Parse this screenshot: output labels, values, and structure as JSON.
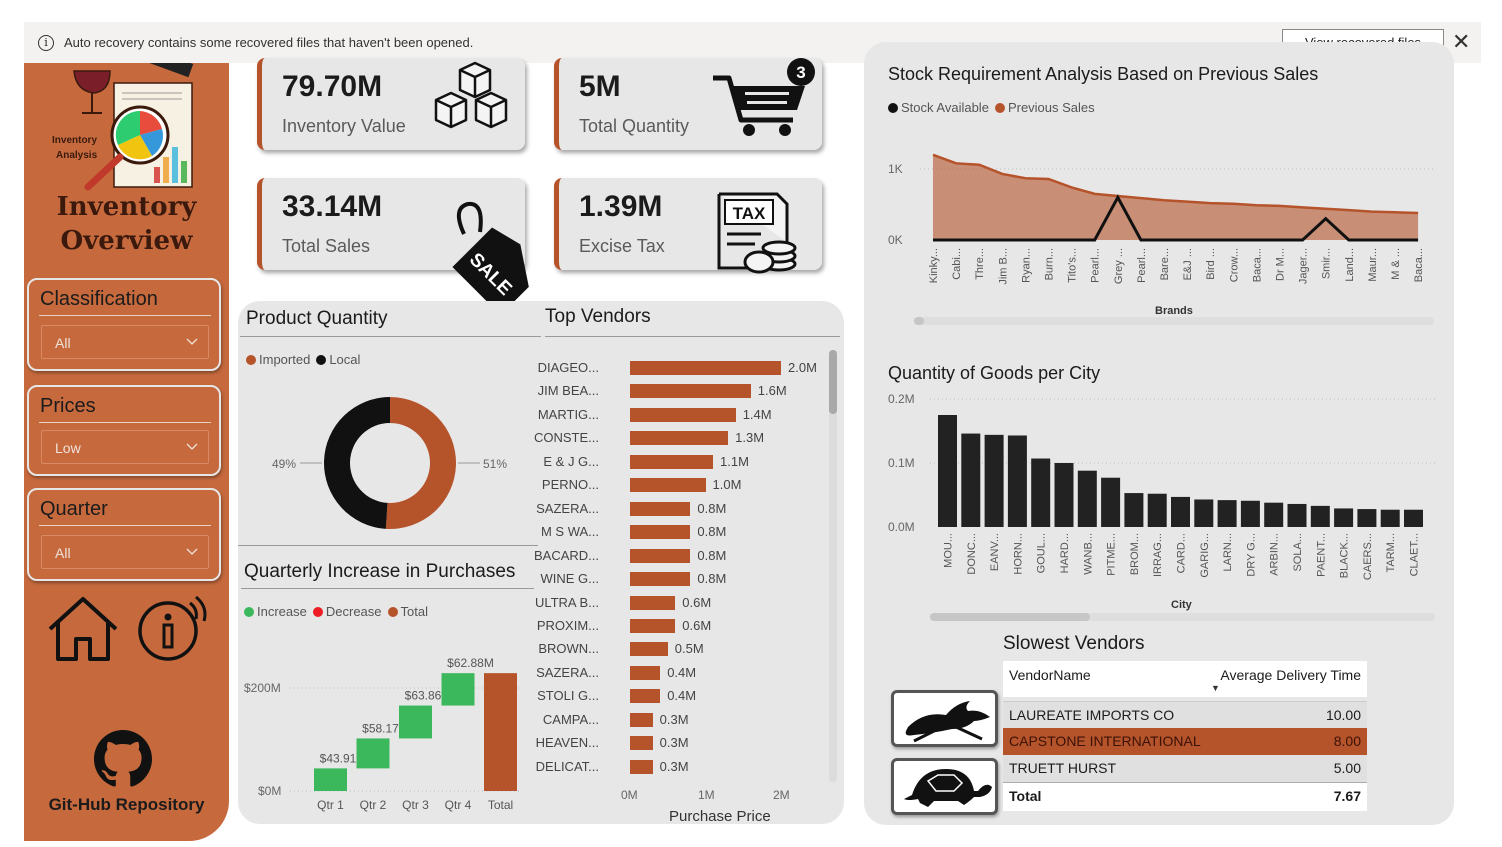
{
  "notification": {
    "info_icon": "info-icon",
    "text": "Auto recovery contains some recovered files that haven't been opened.",
    "view_button": "View recovered files",
    "close_icon": "close-icon"
  },
  "sidebar": {
    "logo_text": "Inventory Analysis",
    "title_line1": "Inventory",
    "title_line2": "Overview",
    "slicers": [
      {
        "label": "Classification",
        "value": "All"
      },
      {
        "label": "Prices",
        "value": "Low"
      },
      {
        "label": "Quarter",
        "value": "All"
      }
    ],
    "github_label": "Git-Hub Repository"
  },
  "kpis": [
    {
      "value": "79.70M",
      "label": "Inventory Value",
      "icon": "boxes-icon"
    },
    {
      "value": "5M",
      "label": "Total Quantity",
      "icon": "shopping-cart-icon",
      "badge": "3"
    },
    {
      "value": "33.14M",
      "label": "Total Sales",
      "icon": "sale-tag-icon",
      "tag_text": "SALE"
    },
    {
      "value": "1.39M",
      "label": "Excise Tax",
      "icon": "tax-document-icon",
      "tag_text": "TAX"
    }
  ],
  "product_quantity": {
    "title": "Product Quantity",
    "legend": [
      "Imported",
      "Local"
    ],
    "colors": {
      "Imported": "#b5532b",
      "Local": "#111111"
    },
    "chart_data": {
      "type": "pie",
      "categories": [
        "Imported",
        "Local"
      ],
      "values": [
        51,
        49
      ],
      "labels": [
        "51%",
        "49%"
      ]
    }
  },
  "top_vendors": {
    "title": "Top Vendors",
    "xlabel": "Purchase Price",
    "x_ticks": [
      "0M",
      "1M",
      "2M"
    ],
    "chart_data": {
      "type": "bar",
      "orientation": "horizontal",
      "xlabel": "Purchase Price",
      "xlim": [
        0,
        2.2
      ],
      "categories": [
        "DIAGEO...",
        "JIM BEA...",
        "MARTIG...",
        "CONSTE...",
        "E & J G...",
        "PERNO...",
        "SAZERA...",
        "M S WA...",
        "BACARD...",
        "WINE G...",
        "ULTRA B...",
        "PROXIM...",
        "BROWN...",
        "SAZERA...",
        "STOLI G...",
        "CAMPA...",
        "HEAVEN...",
        "DELICAT..."
      ],
      "values": [
        2.0,
        1.6,
        1.4,
        1.3,
        1.1,
        1.0,
        0.8,
        0.8,
        0.8,
        0.8,
        0.6,
        0.6,
        0.5,
        0.4,
        0.4,
        0.3,
        0.3,
        0.3
      ],
      "labels": [
        "2.0M",
        "1.6M",
        "1.4M",
        "1.3M",
        "1.1M",
        "1.0M",
        "0.8M",
        "0.8M",
        "0.8M",
        "0.8M",
        "0.6M",
        "0.6M",
        "0.5M",
        "0.4M",
        "0.4M",
        "0.3M",
        "0.3M",
        "0.3M"
      ]
    }
  },
  "quarterly": {
    "title": "Quarterly Increase in Purchases",
    "legend": [
      "Increase",
      "Decrease",
      "Total"
    ],
    "colors": {
      "Increase": "#3cb85c",
      "Decrease": "#ee1c24",
      "Total": "#b5532b"
    },
    "y_ticks": [
      "$200M",
      "$0M"
    ],
    "chart_data": {
      "type": "waterfall",
      "categories": [
        "Qtr 1",
        "Qtr 2",
        "Qtr 3",
        "Qtr 4",
        "Total"
      ],
      "values": [
        43.91,
        58.17,
        63.86,
        62.88,
        228.82
      ],
      "labels": [
        "$43.91M",
        "$58.17M",
        "$63.86M",
        "$62.88M"
      ],
      "ylim": [
        0,
        260
      ]
    }
  },
  "stock_requirement": {
    "title": "Stock Requirement Analysis Based on Previous Sales",
    "legend": [
      "Stock Available",
      "Previous Sales"
    ],
    "colors": {
      "Stock Available": "#111111",
      "Previous Sales": "#b5532b"
    },
    "xlabel": "Brands",
    "y_ticks": [
      "1K",
      "0K"
    ],
    "chart_data": {
      "type": "area",
      "x": [
        "Kinky...",
        "Cabi...",
        "Thre...",
        "Jim B...",
        "Ryan...",
        "Burn...",
        "Tito's...",
        "Pearl...",
        "Grey ...",
        "Pearl...",
        "Bare...",
        "E&J ...",
        "Bird ...",
        "Crow...",
        "Baca...",
        "Dr M...",
        "Jager...",
        "Smir...",
        "Land...",
        "Maur...",
        "M & ...",
        "Baca..."
      ],
      "series": [
        {
          "name": "Previous Sales",
          "values": [
            1200,
            1080,
            1060,
            930,
            870,
            860,
            740,
            650,
            620,
            590,
            560,
            540,
            520,
            510,
            490,
            480,
            460,
            440,
            420,
            400,
            390,
            380
          ]
        },
        {
          "name": "Stock Available",
          "values": [
            0,
            0,
            0,
            0,
            0,
            0,
            0,
            0,
            600,
            0,
            0,
            0,
            0,
            0,
            0,
            0,
            0,
            300,
            0,
            0,
            0,
            0
          ]
        }
      ],
      "ylim": [
        0,
        1300
      ]
    }
  },
  "goods_per_city": {
    "title": "Quantity of Goods per City",
    "xlabel": "City",
    "y_ticks": [
      "0.2M",
      "0.1M",
      "0.0M"
    ],
    "chart_data": {
      "type": "bar",
      "categories": [
        "MOU...",
        "DONC...",
        "EANV...",
        "HORN...",
        "GOUL...",
        "HARD...",
        "WANB...",
        "PITME...",
        "BROM...",
        "IRRAG...",
        "CARD...",
        "GARIG...",
        "LARN...",
        "DRY G...",
        "ARBIN...",
        "SOLA...",
        "PAENT...",
        "BLACK...",
        "CAERS...",
        "TARM...",
        "CLAET..."
      ],
      "values": [
        0.175,
        0.146,
        0.144,
        0.143,
        0.107,
        0.1,
        0.088,
        0.077,
        0.053,
        0.052,
        0.047,
        0.043,
        0.042,
        0.041,
        0.038,
        0.036,
        0.033,
        0.029,
        0.028,
        0.027,
        0.027
      ],
      "ylim": [
        0,
        0.2
      ]
    }
  },
  "slowest_vendors": {
    "title": "Slowest Vendors",
    "columns": [
      "VendorName",
      "Average Delivery Time"
    ],
    "rows": [
      {
        "name": "LAUREATE IMPORTS CO",
        "value": "10.00"
      },
      {
        "name": "CAPSTONE INTERNATIONAL",
        "value": "8.00"
      },
      {
        "name": "TRUETT HURST",
        "value": "5.00"
      }
    ],
    "total_label": "Total",
    "total_value": "7.67",
    "highlight_color": "#b5532b"
  }
}
